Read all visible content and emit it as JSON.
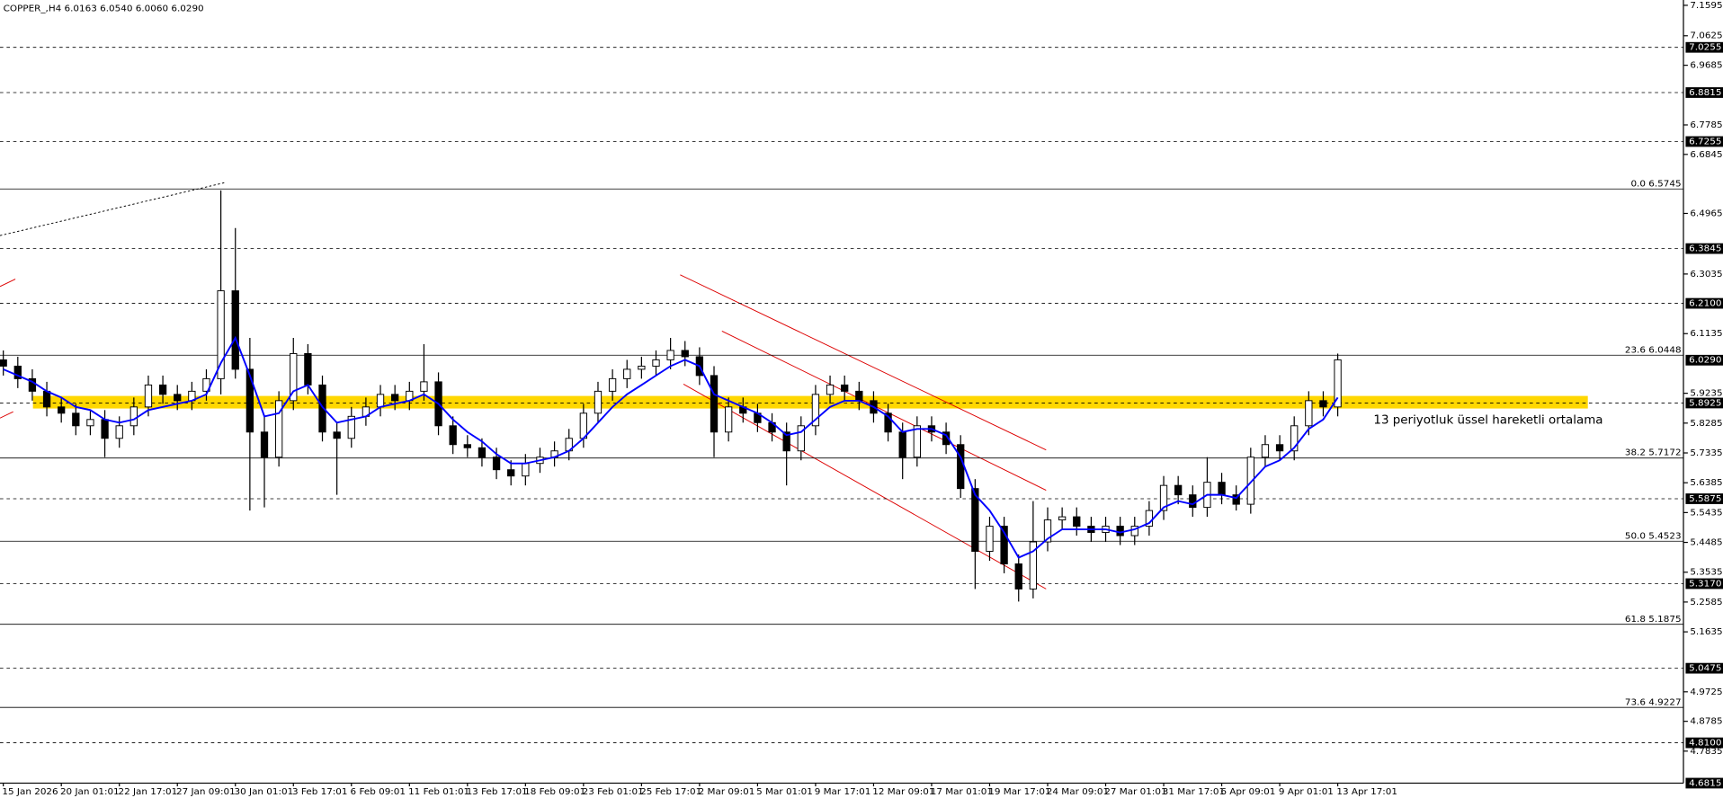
{
  "chart_data": {
    "type": "candlestick",
    "title": "COPPER_,H4  6.0163 6.0540 6.0060 6.0290",
    "annotation": "13 periyotluk üssel hareketli ortalama",
    "categories": [
      "15 Jan 2026",
      null,
      null,
      null,
      "20 Jan 01:01",
      null,
      null,
      null,
      "22 Jan 17:01",
      null,
      null,
      null,
      "27 Jan 09:01",
      null,
      null,
      null,
      "30 Jan 01:01",
      null,
      null,
      null,
      "3 Feb 17:01",
      null,
      null,
      null,
      "6 Feb 09:01",
      null,
      null,
      null,
      "11 Feb 01:01",
      null,
      null,
      null,
      "13 Feb 17:01",
      null,
      null,
      null,
      "18 Feb 09:01",
      null,
      null,
      null,
      "23 Feb 01:01",
      null,
      null,
      null,
      "25 Feb 17:01",
      null,
      null,
      null,
      "2 Mar 09:01",
      null,
      null,
      null,
      "5 Mar 01:01",
      null,
      null,
      null,
      "9 Mar 17:01",
      null,
      null,
      null,
      "12 Mar 09:01",
      null,
      null,
      null,
      "17 Mar 01:01",
      null,
      null,
      null,
      "19 Mar 17:01",
      null,
      null,
      null,
      "24 Mar 09:01",
      null,
      null,
      null,
      "27 Mar 01:01",
      null,
      null,
      null,
      "31 Mar 17:01",
      null,
      null,
      null,
      "6 Apr 09:01",
      null,
      null,
      null,
      "9 Apr 01:01",
      null,
      null,
      null,
      "13 Apr 17:01"
    ],
    "open": [
      6.03,
      6.01,
      5.97,
      5.93,
      5.88,
      5.86,
      5.82,
      5.84,
      5.78,
      5.82,
      5.88,
      5.95,
      5.92,
      5.9,
      5.93,
      5.97,
      6.25,
      6.0,
      5.8,
      5.72,
      5.9,
      6.05,
      5.95,
      5.8,
      5.78,
      5.85,
      5.88,
      5.92,
      5.9,
      5.93,
      5.96,
      5.82,
      5.76,
      5.75,
      5.72,
      5.68,
      5.66,
      5.7,
      5.72,
      5.74,
      5.78,
      5.86,
      5.93,
      5.97,
      6.0,
      6.01,
      6.03,
      6.06,
      6.04,
      5.98,
      5.8,
      5.88,
      5.86,
      5.83,
      5.8,
      5.74,
      5.82,
      5.92,
      5.95,
      5.93,
      5.9,
      5.86,
      5.8,
      5.72,
      5.82,
      5.8,
      5.76,
      5.62,
      5.42,
      5.5,
      5.38,
      5.3,
      5.45,
      5.52,
      5.53,
      5.5,
      5.48,
      5.5,
      5.47,
      5.5,
      5.55,
      5.63,
      5.6,
      5.56,
      5.64,
      5.6,
      5.57,
      5.72,
      5.76,
      5.74,
      5.82,
      5.9,
      5.88
    ],
    "high": [
      6.06,
      6.04,
      6.0,
      5.96,
      5.91,
      5.89,
      5.87,
      5.87,
      5.85,
      5.91,
      5.98,
      5.98,
      5.95,
      5.96,
      6.0,
      6.57,
      6.45,
      6.1,
      5.85,
      5.93,
      6.1,
      6.08,
      5.98,
      5.83,
      5.88,
      5.91,
      5.95,
      5.95,
      5.96,
      6.08,
      5.99,
      5.85,
      5.79,
      5.78,
      5.75,
      5.71,
      5.73,
      5.75,
      5.77,
      5.81,
      5.89,
      5.96,
      6.0,
      6.03,
      6.04,
      6.06,
      6.1,
      6.09,
      6.07,
      6.01,
      5.91,
      5.91,
      5.89,
      5.86,
      5.83,
      5.85,
      5.95,
      5.98,
      5.98,
      5.96,
      5.93,
      5.89,
      5.83,
      5.85,
      5.85,
      5.83,
      5.79,
      5.65,
      5.53,
      5.53,
      5.41,
      5.58,
      5.56,
      5.56,
      5.56,
      5.53,
      5.53,
      5.53,
      5.53,
      5.58,
      5.66,
      5.66,
      5.63,
      5.72,
      5.67,
      5.63,
      5.75,
      5.79,
      5.79,
      5.85,
      5.93,
      5.93,
      6.05
    ],
    "low": [
      5.98,
      5.94,
      5.9,
      5.85,
      5.83,
      5.79,
      5.79,
      5.72,
      5.75,
      5.79,
      5.85,
      5.89,
      5.87,
      5.87,
      5.9,
      5.92,
      5.97,
      5.55,
      5.56,
      5.69,
      5.87,
      5.92,
      5.77,
      5.6,
      5.75,
      5.82,
      5.85,
      5.87,
      5.87,
      5.9,
      5.79,
      5.73,
      5.72,
      5.69,
      5.65,
      5.63,
      5.63,
      5.67,
      5.69,
      5.71,
      5.75,
      5.83,
      5.9,
      5.94,
      5.97,
      5.98,
      6.0,
      6.01,
      5.95,
      5.72,
      5.77,
      5.83,
      5.8,
      5.77,
      5.63,
      5.71,
      5.79,
      5.89,
      5.9,
      5.87,
      5.83,
      5.77,
      5.65,
      5.69,
      5.77,
      5.73,
      5.59,
      5.3,
      5.39,
      5.35,
      5.26,
      5.27,
      5.42,
      5.49,
      5.47,
      5.45,
      5.45,
      5.44,
      5.44,
      5.47,
      5.52,
      5.57,
      5.53,
      5.53,
      5.57,
      5.55,
      5.54,
      5.69,
      5.71,
      5.71,
      5.79,
      5.85,
      5.85
    ],
    "close": [
      6.01,
      5.97,
      5.93,
      5.88,
      5.86,
      5.82,
      5.84,
      5.78,
      5.82,
      5.88,
      5.95,
      5.92,
      5.9,
      5.93,
      5.97,
      6.25,
      6.0,
      5.8,
      5.72,
      5.9,
      6.05,
      5.95,
      5.8,
      5.78,
      5.85,
      5.88,
      5.92,
      5.9,
      5.93,
      5.96,
      5.82,
      5.76,
      5.75,
      5.72,
      5.68,
      5.66,
      5.7,
      5.72,
      5.74,
      5.78,
      5.86,
      5.93,
      5.97,
      6.0,
      6.01,
      6.03,
      6.06,
      6.04,
      5.98,
      5.8,
      5.88,
      5.86,
      5.83,
      5.8,
      5.74,
      5.82,
      5.92,
      5.95,
      5.93,
      5.9,
      5.86,
      5.8,
      5.72,
      5.82,
      5.8,
      5.76,
      5.62,
      5.42,
      5.5,
      5.38,
      5.3,
      5.45,
      5.52,
      5.53,
      5.5,
      5.48,
      5.5,
      5.47,
      5.5,
      5.55,
      5.63,
      5.6,
      5.56,
      5.64,
      5.6,
      5.57,
      5.72,
      5.76,
      5.74,
      5.82,
      5.9,
      5.88,
      6.03
    ],
    "ema": {
      "color": "#0000ff",
      "values": [
        6.0,
        5.98,
        5.96,
        5.93,
        5.91,
        5.88,
        5.87,
        5.84,
        5.83,
        5.84,
        5.87,
        5.88,
        5.89,
        5.9,
        5.92,
        6.02,
        6.1,
        5.98,
        5.85,
        5.86,
        5.93,
        5.95,
        5.88,
        5.83,
        5.84,
        5.85,
        5.88,
        5.89,
        5.9,
        5.92,
        5.89,
        5.84,
        5.8,
        5.77,
        5.73,
        5.7,
        5.7,
        5.71,
        5.72,
        5.74,
        5.78,
        5.83,
        5.88,
        5.92,
        5.95,
        5.98,
        6.01,
        6.03,
        6.01,
        5.92,
        5.9,
        5.88,
        5.86,
        5.83,
        5.79,
        5.8,
        5.84,
        5.88,
        5.9,
        5.9,
        5.88,
        5.85,
        5.8,
        5.81,
        5.81,
        5.79,
        5.72,
        5.6,
        5.55,
        5.48,
        5.4,
        5.42,
        5.46,
        5.49,
        5.49,
        5.49,
        5.49,
        5.48,
        5.49,
        5.51,
        5.56,
        5.58,
        5.57,
        5.6,
        5.6,
        5.59,
        5.64,
        5.69,
        5.71,
        5.75,
        5.81,
        5.84,
        5.91
      ]
    },
    "support_zone": {
      "color": "#ffd700",
      "range": [
        5.875,
        5.915
      ]
    },
    "ylim": [
      4.6815,
      7.1595
    ],
    "yticks": [
      7.1595,
      7.0625,
      6.9685,
      6.7785,
      6.6845,
      6.4965,
      6.3035,
      6.1135,
      5.9235,
      5.8285,
      5.7335,
      5.6385,
      5.5435,
      5.4485,
      5.3535,
      5.2585,
      5.1635,
      4.9725,
      4.8785,
      4.7835
    ],
    "levels": [
      7.0255,
      6.8815,
      6.7255,
      6.3845,
      {
        "value": 6.21,
        "label": "6.2100"
      },
      5.8925,
      5.5875,
      {
        "value": 5.317,
        "label": "5.3170"
      },
      5.0475,
      {
        "value": 4.81,
        "label": "4.8100"
      },
      4.6815
    ],
    "price": {
      "value": 6.029,
      "label": "6.0290"
    },
    "fib": [
      {
        "value": 6.5745,
        "label": "0.0 6.5745"
      },
      {
        "value": 6.0448,
        "label": "23.6 6.0448"
      },
      {
        "value": 5.7172,
        "label": "38.2 5.7172"
      },
      {
        "value": 5.4523,
        "label": "50.0 5.4523"
      },
      {
        "value": 5.1875,
        "label": "61.8 5.1875"
      },
      {
        "value": 4.9227,
        "label": "73.6 4.9227"
      }
    ]
  }
}
